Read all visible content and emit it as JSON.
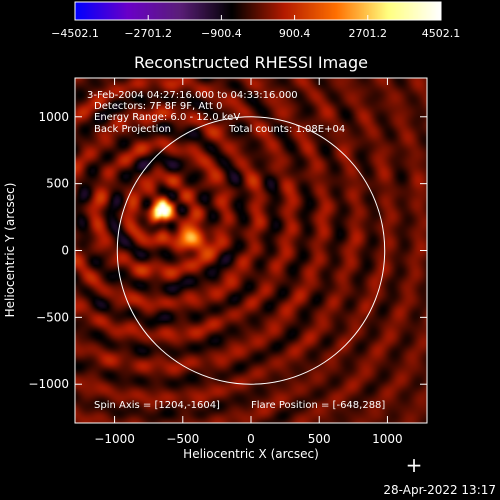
{
  "chart_data": {
    "type": "heatmap",
    "title": "Reconstructed RHESSI Image",
    "xlabel": "Heliocentric X (arcsec)",
    "ylabel": "Heliocentric Y (arcsec)",
    "xlim": [
      -1290,
      1290
    ],
    "ylim": [
      -1290,
      1290
    ],
    "xticks": [
      -1000,
      -500,
      0,
      500,
      1000
    ],
    "xtick_labels": [
      "−1000",
      "−500",
      "0",
      "500",
      "1000"
    ],
    "yticks": [
      -1000,
      -500,
      0,
      500,
      1000
    ],
    "ytick_labels": [
      "−1000",
      "−500",
      "0",
      "500",
      "1000"
    ],
    "colorbar": {
      "min": -4502.1,
      "max": 4502.1,
      "ticks": [
        -4502.1,
        -2701.2,
        -900.4,
        900.4,
        2701.2,
        4502.1
      ],
      "tick_labels": [
        "−4502.1",
        "−2701.2",
        "−900.4",
        "900.4",
        "2701.2",
        "4502.1"
      ],
      "colors": [
        "#0000ff",
        "#6a00c8",
        "#5a1e78",
        "#000000",
        "#b31a00",
        "#ff7000",
        "#ffff80",
        "#ffffff"
      ]
    },
    "solar_limb_radius_arcsec": 980,
    "solar_limb_center": [
      0,
      0
    ],
    "peak_source": {
      "x": -650,
      "y": 300,
      "value": 4502.1
    },
    "annotations": {
      "time_range": "3-Feb-2004 04:27:16.000 to 04:33:16.000",
      "detectors": "Detectors: 7F 8F 9F, Att 0",
      "energy": "Energy Range: 6.0 - 12.0 keV",
      "method": "Back Projection",
      "total_counts": "Total counts: 1.08E+04",
      "spin_axis": "Spin Axis = [1204,-1604]",
      "flare_position": "Flare Position = [-648,288]"
    }
  },
  "footer": {
    "timestamp": "28-Apr-2022 13:17",
    "cursor_marker": "+"
  }
}
